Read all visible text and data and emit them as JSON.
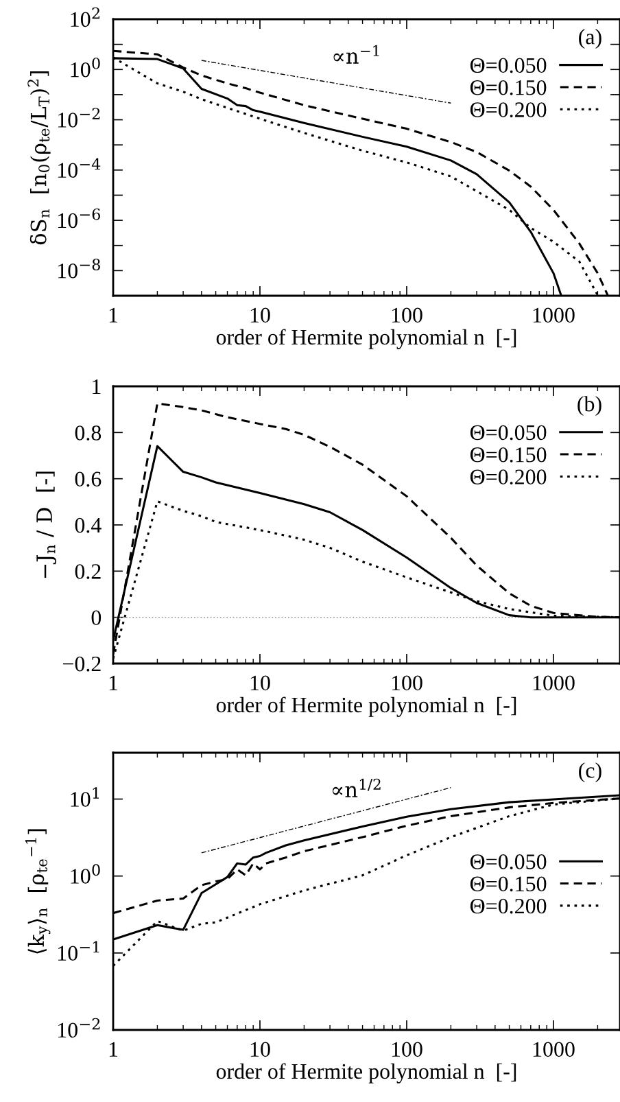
{
  "chart_data": [
    {
      "type": "line",
      "xlabel": "order of Hermite polynomial n  [-]",
      "ylabel": "δS$_{n}$  [n$_{0}$(ρ$_{te}$/L$_{T}$)$^{2}$]",
      "log": "xy",
      "legend": "top right",
      "grid": false,
      "xlim": [
        1,
        2840
      ],
      "xticks": [
        1,
        10,
        100,
        1000
      ],
      "ylim": [
        1e-09,
        100
      ],
      "yticks": [
        {
          "value": 100,
          "label": "10$^{2}$"
        },
        {
          "value": 10,
          "label": null
        },
        {
          "value": 1,
          "label": "10$^{0}$"
        },
        {
          "value": 0.1,
          "label": null
        },
        {
          "value": 0.01,
          "label": "10$^{−2}$"
        },
        {
          "value": 0.001,
          "label": null
        },
        {
          "value": 0.0001,
          "label": "10$^{−4}$"
        },
        {
          "value": 1e-05,
          "label": null
        },
        {
          "value": 1e-06,
          "label": "10$^{−6}$"
        },
        {
          "value": 1e-07,
          "label": null
        },
        {
          "value": 1e-08,
          "label": "10$^{−8}$"
        }
      ],
      "annotations": [
        "(a)",
        "∝n$^{−1}$"
      ],
      "series": [
        {
          "name": "Θ=0.050",
          "color": "#000000",
          "line_style": "solid",
          "x": [
            1,
            2,
            3,
            4,
            6,
            7,
            8,
            9,
            10,
            20,
            50,
            100,
            200,
            300,
            500,
            700,
            1000,
            1130
          ],
          "values": [
            2.8,
            2.6,
            1.1,
            0.17,
            0.07,
            0.038,
            0.035,
            0.024,
            0.021,
            0.0074,
            0.0021,
            0.00085,
            0.00024,
            6.8e-05,
            5.2e-06,
            3.5e-07,
            7.9e-09,
            1e-09
          ]
        },
        {
          "name": "Θ=0.150",
          "color": "#000000",
          "line_style": "dashed",
          "x": [
            1,
            2,
            3,
            4,
            6,
            8,
            10,
            20,
            50,
            100,
            200,
            300,
            500,
            700,
            1000,
            1500,
            2000,
            2350
          ],
          "values": [
            5.5,
            4.0,
            1.2,
            0.58,
            0.28,
            0.18,
            0.12,
            0.038,
            0.011,
            0.0044,
            0.0013,
            0.00052,
            9.5e-05,
            2.2e-05,
            2.6e-06,
            1.2e-07,
            7.9e-09,
            1e-09
          ]
        },
        {
          "name": "Θ=0.200",
          "color": "#000000",
          "line_style": "dotted",
          "x": [
            1,
            2,
            3,
            4,
            10,
            20,
            50,
            100,
            200,
            500,
            700,
            1000,
            1500,
            2000
          ],
          "values": [
            3.0,
            0.28,
            0.13,
            0.066,
            0.011,
            0.003,
            0.00059,
            0.0002,
            5.6e-05,
            2.6e-06,
            5e-07,
            1.4e-07,
            2.3e-08,
            1.05e-09
          ]
        },
        {
          "color": "#000000",
          "line_style": "dashdot",
          "x": [
            4,
            200
          ],
          "values": [
            2.3,
            0.046
          ]
        }
      ]
    },
    {
      "type": "line",
      "xlabel": "order of Hermite polynomial n  [-]",
      "ylabel": "−J$_{n}$ / D  [-]",
      "log": "x",
      "legend": "top right",
      "grid": false,
      "xlim": [
        1,
        2840
      ],
      "xticks": [
        1,
        10,
        100,
        1000
      ],
      "ylim": [
        -0.2,
        1
      ],
      "yticks": [
        {
          "value": -0.2,
          "label": "−0.2"
        },
        0,
        0.2,
        0.4,
        0.6,
        0.8,
        1
      ],
      "annotations": [
        "(b)"
      ],
      "ref_lines": [
        {
          "axis": "y",
          "value": 0,
          "color": "#808080",
          "line_style": "dotted"
        }
      ],
      "series": [
        {
          "name": "Θ=0.050",
          "color": "#000000",
          "line_style": "solid",
          "x": [
            1,
            2,
            3,
            4,
            5,
            10,
            20,
            30,
            50,
            100,
            200,
            300,
            500,
            700,
            2840
          ],
          "values": [
            -0.1,
            0.741,
            0.63,
            0.606,
            0.584,
            0.538,
            0.49,
            0.455,
            0.378,
            0.259,
            0.127,
            0.062,
            0.009,
            0,
            0
          ]
        },
        {
          "name": "Θ=0.150",
          "color": "#000000",
          "line_style": "dashed",
          "x": [
            1,
            2,
            3,
            4,
            6,
            10,
            15,
            20,
            30,
            50,
            100,
            200,
            300,
            500,
            700,
            1000,
            2000,
            2840
          ],
          "values": [
            -0.16,
            0.926,
            0.91,
            0.896,
            0.866,
            0.837,
            0.815,
            0.79,
            0.738,
            0.661,
            0.524,
            0.344,
            0.224,
            0.104,
            0.05,
            0.019,
            0.002,
            0
          ]
        },
        {
          "name": "Θ=0.200",
          "color": "#000000",
          "line_style": "dotted",
          "x": [
            1,
            2,
            3,
            4,
            5,
            10,
            20,
            30,
            50,
            100,
            200,
            300,
            500,
            1000,
            2840
          ],
          "values": [
            -0.178,
            0.502,
            0.461,
            0.438,
            0.413,
            0.378,
            0.336,
            0.301,
            0.241,
            0.173,
            0.108,
            0.07,
            0.036,
            0.007,
            0
          ]
        }
      ]
    },
    {
      "type": "line",
      "xlabel": "order of Hermite polynomial n  [-]",
      "ylabel": "⟨k$_{y}$⟩$_{n}$  [ρ$_{te}$$^{−1}$]",
      "log": "xy",
      "legend": "right",
      "grid": false,
      "xlim": [
        1,
        2840
      ],
      "xticks": [
        1,
        10,
        100,
        1000
      ],
      "ylim": [
        0.01,
        40
      ],
      "yticks": [
        {
          "value": 0.01,
          "label": "10$^{−2}$"
        },
        {
          "value": 0.1,
          "label": "10$^{−1}$"
        },
        {
          "value": 1,
          "label": "10$^{0}$"
        },
        {
          "value": 10,
          "label": "10$^{1}$"
        }
      ],
      "annotations": [
        "(c)",
        "∝n$^{1/2}$"
      ],
      "series": [
        {
          "name": "Θ=0.050",
          "color": "#000000",
          "line_style": "solid",
          "x": [
            1,
            2,
            3,
            4,
            5,
            6,
            7,
            8,
            9,
            10,
            11,
            15,
            20,
            50,
            100,
            200,
            500,
            1000,
            2840
          ],
          "values": [
            0.15,
            0.23,
            0.2,
            0.6,
            0.78,
            0.97,
            1.46,
            1.41,
            1.74,
            1.82,
            2.0,
            2.5,
            2.9,
            4.4,
            5.9,
            7.4,
            9.1,
            9.9,
            11.2
          ]
        },
        {
          "name": "Θ=0.150",
          "color": "#000000",
          "line_style": "dashed",
          "x": [
            1,
            2,
            3,
            4,
            5,
            6,
            7,
            8,
            9,
            10,
            11,
            15,
            20,
            50,
            100,
            200,
            500,
            1000,
            2840
          ],
          "values": [
            0.33,
            0.48,
            0.51,
            0.76,
            0.85,
            0.91,
            1.22,
            1.02,
            1.46,
            1.22,
            1.46,
            1.74,
            2.1,
            3.2,
            4.5,
            6.0,
            7.8,
            8.9,
            10.2
          ]
        },
        {
          "name": "Θ=0.200",
          "color": "#000000",
          "line_style": "dotted",
          "x": [
            1,
            2,
            3,
            4,
            5,
            10,
            20,
            50,
            100,
            200,
            500,
            1000,
            2840
          ],
          "values": [
            0.068,
            0.26,
            0.195,
            0.24,
            0.25,
            0.43,
            0.65,
            1.02,
            1.86,
            3.2,
            6.0,
            8.5,
            10.2
          ]
        },
        {
          "color": "#000000",
          "line_style": "dashdot",
          "x": [
            4,
            200
          ],
          "values": [
            2.0,
            14.1
          ]
        }
      ]
    }
  ]
}
